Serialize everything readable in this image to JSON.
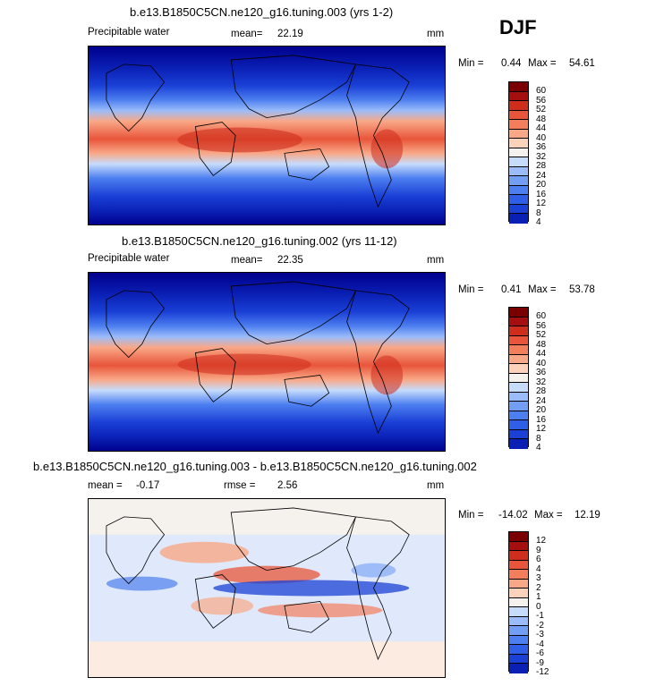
{
  "season_label": "DJF",
  "panels": [
    {
      "title": "b.e13.B1850C5CN.ne120_g16.tuning.003 (yrs 1-2)",
      "left_label": "Precipitable water",
      "mean_label": "mean=",
      "mean_value": "22.19",
      "units": "mm",
      "min_label": "Min =",
      "min_value": "0.44",
      "max_label": "Max =",
      "max_value": "54.61",
      "colorbar_ticks": [
        "60",
        "56",
        "52",
        "48",
        "44",
        "40",
        "36",
        "32",
        "28",
        "24",
        "20",
        "16",
        "12",
        "8",
        "4"
      ]
    },
    {
      "title": "b.e13.B1850C5CN.ne120_g16.tuning.002 (yrs 11-12)",
      "left_label": "Precipitable water",
      "mean_label": "mean=",
      "mean_value": "22.35",
      "units": "mm",
      "min_label": "Min =",
      "min_value": "0.41",
      "max_label": "Max =",
      "max_value": "53.78",
      "colorbar_ticks": [
        "60",
        "56",
        "52",
        "48",
        "44",
        "40",
        "36",
        "32",
        "28",
        "24",
        "20",
        "16",
        "12",
        "8",
        "4"
      ]
    },
    {
      "title": "b.e13.B1850C5CN.ne120_g16.tuning.003 - b.e13.B1850C5CN.ne120_g16.tuning.002",
      "left_label": "mean =",
      "left_value": "-0.17",
      "rmse_label": "rmse =",
      "rmse_value": "2.56",
      "units": "mm",
      "min_label": "Min =",
      "min_value": "-14.02",
      "max_label": "Max =",
      "max_value": "12.19",
      "colorbar_ticks": [
        "12",
        "9",
        "6",
        "4",
        "3",
        "2",
        "1",
        "0",
        "-1",
        "-2",
        "-3",
        "-4",
        "-6",
        "-9",
        "-12"
      ]
    }
  ],
  "chart_data": [
    {
      "type": "heatmap",
      "title": "b.e13.B1850C5CN.ne120_g16.tuning.003 (yrs 1-2)",
      "variable": "Precipitable water",
      "units": "mm",
      "mean": 22.19,
      "min": 0.44,
      "max": 54.61,
      "levels": [
        4,
        8,
        12,
        16,
        20,
        24,
        28,
        32,
        36,
        40,
        44,
        48,
        52,
        56,
        60
      ],
      "colors": [
        "#00008c",
        "#0a1fb4",
        "#1a40d6",
        "#2f5fe6",
        "#4d7ff0",
        "#729ef6",
        "#9cbcf9",
        "#c6dcfb",
        "#f5f2ee",
        "#fcd2bb",
        "#f9a887",
        "#f37e5c",
        "#e8553a",
        "#cf2e1d",
        "#a50f0f",
        "#7a0000"
      ],
      "grid": false
    },
    {
      "type": "heatmap",
      "title": "b.e13.B1850C5CN.ne120_g16.tuning.002 (yrs 11-12)",
      "variable": "Precipitable water",
      "units": "mm",
      "mean": 22.35,
      "min": 0.41,
      "max": 53.78,
      "levels": [
        4,
        8,
        12,
        16,
        20,
        24,
        28,
        32,
        36,
        40,
        44,
        48,
        52,
        56,
        60
      ],
      "colors": [
        "#00008c",
        "#0a1fb4",
        "#1a40d6",
        "#2f5fe6",
        "#4d7ff0",
        "#729ef6",
        "#9cbcf9",
        "#c6dcfb",
        "#f5f2ee",
        "#fcd2bb",
        "#f9a887",
        "#f37e5c",
        "#e8553a",
        "#cf2e1d",
        "#a50f0f",
        "#7a0000"
      ],
      "grid": false
    },
    {
      "type": "heatmap",
      "title": "b.e13.B1850C5CN.ne120_g16.tuning.003 - b.e13.B1850C5CN.ne120_g16.tuning.002",
      "units": "mm",
      "mean": -0.17,
      "rmse": 2.56,
      "min": -14.02,
      "max": 12.19,
      "levels": [
        -12,
        -9,
        -6,
        -4,
        -3,
        -2,
        -1,
        0,
        1,
        2,
        3,
        4,
        6,
        9,
        12
      ],
      "colors": [
        "#00008c",
        "#0a1fb4",
        "#1a40d6",
        "#2f5fe6",
        "#4d7ff0",
        "#729ef6",
        "#9cbcf9",
        "#c6dcfb",
        "#f5f2ee",
        "#fcd2bb",
        "#f9a887",
        "#f37e5c",
        "#e8553a",
        "#cf2e1d",
        "#a50f0f",
        "#7a0000"
      ],
      "grid": false
    }
  ]
}
